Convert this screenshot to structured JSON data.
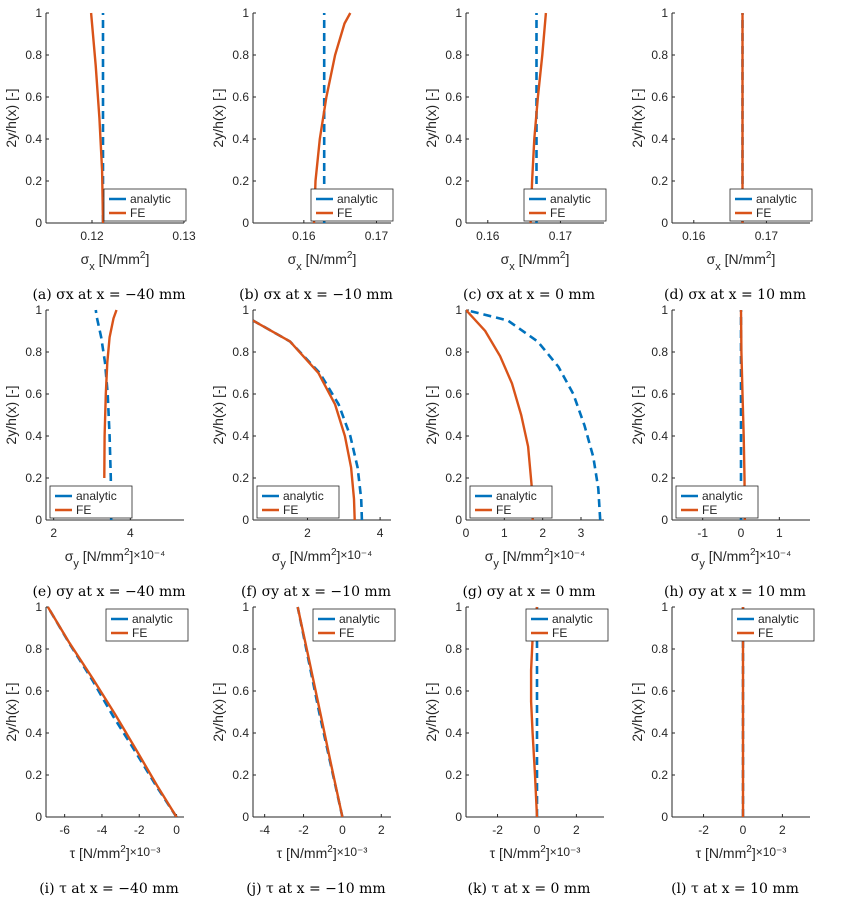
{
  "figure": {
    "legend_labels": [
      "analytic",
      "FE"
    ],
    "colors": {
      "analytic": "#0072BD",
      "fe": "#D95319",
      "axis": "#262626",
      "tick": "#262626"
    },
    "ylabel": "2y/h(x) [-]",
    "ylim": [
      0,
      1
    ],
    "yticks": [
      0,
      0.2,
      0.4,
      0.6,
      0.8,
      1
    ],
    "ytick_labels": [
      "0",
      "0.2",
      "0.4",
      "0.6",
      "0.8",
      "1"
    ]
  },
  "chart_data": [
    {
      "type": "line",
      "panel": "a",
      "caption_prefix": "(a)",
      "caption_text": "σx at x = −40 mm",
      "xlabel_sym": "σ",
      "xlabel_sub": "x",
      "xlabel_unit": "[N/mm",
      "xlabel_sup": "2",
      "xlabel_close": "]",
      "xlabel_mult": "",
      "xlim": [
        0.115,
        0.13
      ],
      "xticks": [
        0.12,
        0.13
      ],
      "xtick_labels": [
        "0.12",
        "0.13"
      ],
      "legend_position": "bottom-right",
      "series": [
        {
          "name": "analytic",
          "style": "dashed",
          "x": [
            0.1212,
            0.1212,
            0.1212
          ],
          "y": [
            0,
            0.5,
            1
          ]
        },
        {
          "name": "FE",
          "style": "solid",
          "x": [
            0.1212,
            0.1211,
            0.1208,
            0.1204,
            0.1199
          ],
          "y": [
            0,
            0.25,
            0.5,
            0.75,
            1
          ]
        }
      ]
    },
    {
      "type": "line",
      "panel": "b",
      "caption_prefix": "(b)",
      "caption_text": "σx at x = −10 mm",
      "xlabel_sym": "σ",
      "xlabel_sub": "x",
      "xlabel_unit": "[N/mm",
      "xlabel_sup": "2",
      "xlabel_close": "]",
      "xlabel_mult": "",
      "xlim": [
        0.153,
        0.172
      ],
      "xticks": [
        0.16,
        0.17
      ],
      "xtick_labels": [
        "0.16",
        "0.17"
      ],
      "legend_position": "bottom-right",
      "series": [
        {
          "name": "analytic",
          "style": "dashed",
          "x": [
            0.1628,
            0.1628,
            0.1628
          ],
          "y": [
            0,
            0.5,
            1
          ]
        },
        {
          "name": "FE",
          "style": "solid",
          "x": [
            0.1614,
            0.1616,
            0.1622,
            0.1631,
            0.1643,
            0.1656,
            0.1664
          ],
          "y": [
            0,
            0.2,
            0.4,
            0.6,
            0.8,
            0.95,
            1
          ]
        }
      ]
    },
    {
      "type": "line",
      "panel": "c",
      "caption_prefix": "(c)",
      "caption_text": "σx at x = 0 mm",
      "xlabel_sym": "σ",
      "xlabel_sub": "x",
      "xlabel_unit": "[N/mm",
      "xlabel_sup": "2",
      "xlabel_close": "]",
      "xlabel_mult": "",
      "xlim": [
        0.157,
        0.176
      ],
      "xticks": [
        0.16,
        0.17
      ],
      "xtick_labels": [
        "0.16",
        "0.17"
      ],
      "legend_position": "bottom-right",
      "series": [
        {
          "name": "analytic",
          "style": "dashed",
          "x": [
            0.1667,
            0.1667,
            0.1667
          ],
          "y": [
            0,
            0.5,
            1
          ]
        },
        {
          "name": "FE",
          "style": "solid",
          "x": [
            0.1659,
            0.1661,
            0.1664,
            0.1669,
            0.1675,
            0.168
          ],
          "y": [
            0,
            0.2,
            0.4,
            0.6,
            0.8,
            1
          ]
        }
      ]
    },
    {
      "type": "line",
      "panel": "d",
      "caption_prefix": "(d)",
      "caption_text": "σx at x = 10 mm",
      "xlabel_sym": "σ",
      "xlabel_sub": "x",
      "xlabel_unit": "[N/mm",
      "xlabel_sup": "2",
      "xlabel_close": "]",
      "xlabel_mult": "",
      "xlim": [
        0.157,
        0.176
      ],
      "xticks": [
        0.16,
        0.17
      ],
      "xtick_labels": [
        "0.16",
        "0.17"
      ],
      "legend_position": "bottom-right",
      "series": [
        {
          "name": "analytic",
          "style": "dashed",
          "x": [
            0.1667,
            0.1667
          ],
          "y": [
            0,
            1
          ]
        },
        {
          "name": "FE",
          "style": "solid",
          "x": [
            0.1667,
            0.1667
          ],
          "y": [
            0,
            1
          ]
        }
      ]
    },
    {
      "type": "line",
      "panel": "e",
      "caption_prefix": "(e)",
      "caption_text": "σy at x = −40 mm",
      "xlabel_sym": "σ",
      "xlabel_sub": "y",
      "xlabel_unit": "[N/mm",
      "xlabel_sup": "2",
      "xlabel_close": "]",
      "xlabel_mult": "×10⁻⁴",
      "xlim": [
        1.8,
        5.4
      ],
      "xticks": [
        2,
        4
      ],
      "xtick_labels": [
        "2",
        "4"
      ],
      "legend_position": "bottom-left",
      "series": [
        {
          "name": "analytic",
          "style": "dashed",
          "x": [
            3.5,
            3.49,
            3.46,
            3.41,
            3.34,
            3.24,
            3.12,
            3.1
          ],
          "y": [
            0,
            0.2,
            0.4,
            0.6,
            0.75,
            0.87,
            0.97,
            1
          ]
        },
        {
          "name": "FE",
          "style": "solid",
          "x": [
            3.32,
            3.33,
            3.36,
            3.4,
            3.46,
            3.56,
            3.64
          ],
          "y": [
            0.2,
            0.4,
            0.6,
            0.75,
            0.87,
            0.96,
            1
          ]
        }
      ]
    },
    {
      "type": "line",
      "panel": "f",
      "caption_prefix": "(f)",
      "caption_text": "σy at x = −10 mm",
      "xlabel_sym": "σ",
      "xlabel_sub": "y",
      "xlabel_unit": "[N/mm",
      "xlabel_sup": "2",
      "xlabel_close": "]",
      "xlabel_mult": "×10⁻⁴",
      "xlim": [
        0.5,
        4.3
      ],
      "xticks": [
        2,
        4
      ],
      "xtick_labels": [
        "2",
        "4"
      ],
      "legend_position": "bottom-left",
      "series": [
        {
          "name": "analytic",
          "style": "dashed",
          "x": [
            3.5,
            3.48,
            3.38,
            3.18,
            2.86,
            2.34,
            1.52,
            0.5
          ],
          "y": [
            0,
            0.1,
            0.25,
            0.4,
            0.55,
            0.7,
            0.85,
            0.95
          ]
        },
        {
          "name": "FE",
          "style": "solid",
          "x": [
            3.3,
            3.28,
            3.2,
            3.03,
            2.76,
            2.3,
            1.52,
            0.5
          ],
          "y": [
            0,
            0.1,
            0.25,
            0.4,
            0.55,
            0.7,
            0.85,
            0.95
          ]
        }
      ]
    },
    {
      "type": "line",
      "panel": "g",
      "caption_prefix": "(g)",
      "caption_text": "σy at x = 0 mm",
      "xlabel_sym": "σ",
      "xlabel_sub": "y",
      "xlabel_unit": "[N/mm",
      "xlabel_sup": "2",
      "xlabel_close": "]",
      "xlabel_mult": "×10⁻⁴",
      "xlim": [
        0,
        3.6
      ],
      "xticks": [
        0,
        1,
        2,
        3
      ],
      "xtick_labels": [
        "0",
        "1",
        "2",
        "3"
      ],
      "legend_position": "bottom-left",
      "series": [
        {
          "name": "analytic",
          "style": "dashed",
          "x": [
            3.5,
            3.45,
            3.32,
            3.09,
            2.8,
            2.41,
            1.87,
            1.09,
            0
          ],
          "y": [
            0,
            0.15,
            0.3,
            0.45,
            0.6,
            0.73,
            0.85,
            0.95,
            1
          ]
        },
        {
          "name": "FE",
          "style": "solid",
          "x": [
            1.74,
            1.72,
            1.62,
            1.44,
            1.2,
            0.89,
            0.5,
            0
          ],
          "y": [
            0,
            0.15,
            0.35,
            0.5,
            0.65,
            0.78,
            0.9,
            1
          ]
        }
      ]
    },
    {
      "type": "line",
      "panel": "h",
      "caption_prefix": "(h)",
      "caption_text": "σy at x = 10 mm",
      "xlabel_sym": "σ",
      "xlabel_sub": "y",
      "xlabel_unit": "[N/mm",
      "xlabel_sup": "2",
      "xlabel_close": "]",
      "xlabel_mult": "×10⁻⁴",
      "xlim": [
        -1.8,
        1.8
      ],
      "xticks": [
        -1,
        0,
        1
      ],
      "xtick_labels": [
        "-1",
        "0",
        "1"
      ],
      "legend_position": "bottom-left",
      "series": [
        {
          "name": "analytic",
          "style": "dashed",
          "x": [
            0,
            0
          ],
          "y": [
            0,
            1
          ]
        },
        {
          "name": "FE",
          "style": "solid",
          "x": [
            0.1,
            0.09,
            0.07,
            0.04,
            0.01,
            0
          ],
          "y": [
            0,
            0.2,
            0.4,
            0.6,
            0.8,
            1
          ]
        }
      ]
    },
    {
      "type": "line",
      "panel": "i",
      "caption_prefix": "(i)",
      "caption_text": "τ at x = −40 mm",
      "xlabel_sym": "τ",
      "xlabel_sub": "",
      "xlabel_unit": "[N/mm",
      "xlabel_sup": "2",
      "xlabel_close": "]",
      "xlabel_mult": "×10⁻³",
      "xlim": [
        -7,
        0.4
      ],
      "xticks": [
        -6,
        -4,
        -2,
        0
      ],
      "xtick_labels": [
        "-6",
        "-4",
        "-2",
        "0"
      ],
      "legend_position": "top-right",
      "series": [
        {
          "name": "analytic",
          "style": "dashed",
          "x": [
            0,
            -1.1,
            -2.2,
            -3.4,
            -4.5,
            -5.7,
            -6.9
          ],
          "y": [
            0,
            0.15,
            0.31,
            0.48,
            0.65,
            0.82,
            1
          ]
        },
        {
          "name": "FE",
          "style": "solid",
          "x": [
            0,
            -1.05,
            -2.1,
            -3.3,
            -4.5,
            -5.75,
            -6.9
          ],
          "y": [
            0,
            0.15,
            0.31,
            0.49,
            0.66,
            0.83,
            1
          ]
        }
      ]
    },
    {
      "type": "line",
      "panel": "j",
      "caption_prefix": "(j)",
      "caption_text": "τ at x = −10 mm",
      "xlabel_sym": "τ",
      "xlabel_sub": "",
      "xlabel_unit": "[N/mm",
      "xlabel_sup": "2",
      "xlabel_close": "]",
      "xlabel_mult": "×10⁻³",
      "xlim": [
        -4.6,
        2.5
      ],
      "xticks": [
        -4,
        -2,
        0,
        2
      ],
      "xtick_labels": [
        "-4",
        "-2",
        "0",
        "2"
      ],
      "legend_position": "top-right",
      "series": [
        {
          "name": "analytic",
          "style": "dashed",
          "x": [
            0,
            -0.6,
            -1.2,
            -1.75,
            -2.3
          ],
          "y": [
            0,
            0.25,
            0.5,
            0.75,
            1
          ]
        },
        {
          "name": "FE",
          "style": "solid",
          "x": [
            0,
            -0.58,
            -1.15,
            -1.72,
            -2.3
          ],
          "y": [
            0,
            0.25,
            0.5,
            0.75,
            1
          ]
        }
      ]
    },
    {
      "type": "line",
      "panel": "k",
      "caption_prefix": "(k)",
      "caption_text": "τ at x = 0 mm",
      "xlabel_sym": "τ",
      "xlabel_sub": "",
      "xlabel_unit": "[N/mm",
      "xlabel_sup": "2",
      "xlabel_close": "]",
      "xlabel_mult": "×10⁻³",
      "xlim": [
        -3.6,
        3.4
      ],
      "xticks": [
        -2,
        0,
        2
      ],
      "xtick_labels": [
        "-2",
        "0",
        "2"
      ],
      "legend_position": "top-right",
      "series": [
        {
          "name": "analytic",
          "style": "dashed",
          "x": [
            0,
            0
          ],
          "y": [
            0,
            1
          ]
        },
        {
          "name": "FE",
          "style": "solid",
          "x": [
            0,
            -0.1,
            -0.22,
            -0.3,
            -0.3,
            -0.22,
            0
          ],
          "y": [
            0,
            0.2,
            0.4,
            0.55,
            0.7,
            0.85,
            1
          ]
        }
      ]
    },
    {
      "type": "line",
      "panel": "l",
      "caption_prefix": "(l)",
      "caption_text": "τ at x = 10 mm",
      "xlabel_sym": "τ",
      "xlabel_sub": "",
      "xlabel_unit": "[N/mm",
      "xlabel_sup": "2",
      "xlabel_close": "]",
      "xlabel_mult": "×10⁻³",
      "xlim": [
        -3.6,
        3.4
      ],
      "xticks": [
        -2,
        0,
        2
      ],
      "xtick_labels": [
        "-2",
        "0",
        "2"
      ],
      "legend_position": "top-right",
      "series": [
        {
          "name": "analytic",
          "style": "dashed",
          "x": [
            0,
            0
          ],
          "y": [
            0,
            1
          ]
        },
        {
          "name": "FE",
          "style": "solid",
          "x": [
            0,
            0
          ],
          "y": [
            0,
            1
          ]
        }
      ]
    }
  ]
}
